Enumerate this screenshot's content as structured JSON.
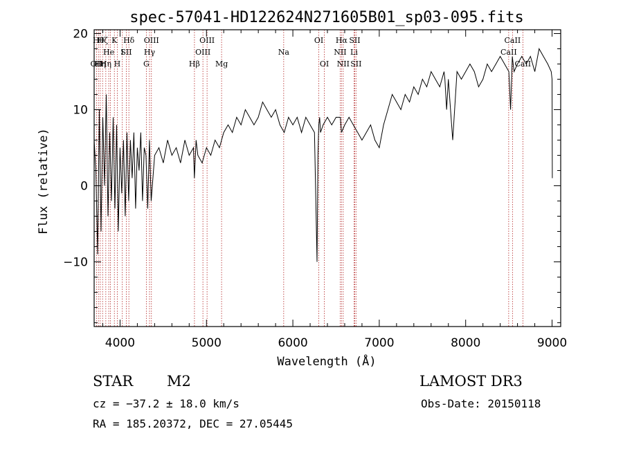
{
  "chart_data": {
    "type": "line",
    "title": "spec-57041-HD122624N271605B01_sp03-095.fits",
    "xlabel": "Wavelength (Å)",
    "ylabel": "Flux (relative)",
    "xlim": [
      3700,
      9100
    ],
    "ylim": [
      -18.5,
      20.5
    ],
    "x_ticks": [
      4000,
      5000,
      6000,
      7000,
      8000,
      9000
    ],
    "x_tick_labels": [
      "4000",
      "5000",
      "6000",
      "7000",
      "8000",
      "9000"
    ],
    "y_ticks": [
      -10,
      0,
      10,
      20
    ],
    "y_tick_labels": [
      "−10",
      "0",
      "10",
      "20"
    ],
    "x_minor_step": 200,
    "y_minor_step": 2,
    "series": [
      {
        "name": "flux",
        "x": [
          3700,
          3720,
          3740,
          3760,
          3780,
          3800,
          3820,
          3840,
          3860,
          3880,
          3900,
          3920,
          3940,
          3960,
          3980,
          4000,
          4020,
          4040,
          4060,
          4080,
          4100,
          4120,
          4140,
          4160,
          4180,
          4200,
          4220,
          4240,
          4260,
          4280,
          4300,
          4320,
          4340,
          4360,
          4400,
          4450,
          4500,
          4550,
          4600,
          4650,
          4700,
          4750,
          4800,
          4850,
          4860,
          4880,
          4900,
          4950,
          5000,
          5050,
          5100,
          5150,
          5200,
          5250,
          5300,
          5350,
          5400,
          5450,
          5500,
          5550,
          5600,
          5650,
          5700,
          5750,
          5800,
          5850,
          5900,
          5950,
          6000,
          6050,
          6100,
          6150,
          6200,
          6250,
          6280,
          6290,
          6300,
          6310,
          6320,
          6350,
          6400,
          6450,
          6500,
          6550,
          6563,
          6600,
          6650,
          6700,
          6750,
          6800,
          6850,
          6900,
          6950,
          7000,
          7050,
          7100,
          7150,
          7200,
          7250,
          7300,
          7350,
          7400,
          7450,
          7500,
          7550,
          7600,
          7650,
          7700,
          7750,
          7760,
          7780,
          7800,
          7850,
          7900,
          7950,
          8000,
          8050,
          8100,
          8150,
          8200,
          8250,
          8300,
          8350,
          8400,
          8450,
          8500,
          8520,
          8540,
          8560,
          8600,
          8650,
          8700,
          8750,
          8800,
          8850,
          8900,
          8950,
          8990,
          9000,
          9003
        ],
        "y": [
          6,
          2,
          -9,
          10,
          -6,
          9,
          0,
          12,
          -4,
          7,
          -2,
          9,
          -3,
          8,
          -6,
          5,
          -1,
          6,
          -4,
          7,
          -2,
          6,
          1,
          7,
          -3,
          5,
          2,
          7,
          -2,
          5,
          4,
          -3,
          6,
          -2,
          4,
          5,
          3,
          6,
          4,
          5,
          3,
          6,
          4,
          5,
          1,
          6,
          4,
          3,
          5,
          4,
          6,
          5,
          7,
          8,
          7,
          9,
          8,
          10,
          9,
          8,
          9,
          11,
          10,
          9,
          10,
          8,
          7,
          9,
          8,
          9,
          7,
          9,
          8,
          7,
          -10,
          4,
          8,
          9,
          7,
          8,
          9,
          8,
          9,
          9,
          7,
          8,
          9,
          8,
          7,
          6,
          7,
          8,
          6,
          5,
          8,
          10,
          12,
          11,
          10,
          12,
          11,
          13,
          12,
          14,
          13,
          15,
          14,
          13,
          15,
          14,
          10,
          14,
          6,
          15,
          14,
          15,
          16,
          15,
          13,
          14,
          16,
          15,
          16,
          17,
          16,
          15,
          10,
          17,
          15,
          16,
          17,
          16,
          17,
          15,
          18,
          17,
          16,
          15,
          14,
          1
        ]
      }
    ],
    "lines": [
      {
        "x": 3727,
        "label": "OII",
        "row": 2
      },
      {
        "x": 3750,
        "label": "Hθ",
        "row": 0
      },
      {
        "x": 3771,
        "label": "Hη",
        "row": 2
      },
      {
        "x": 3798,
        "label": "Hζ",
        "row": 0
      },
      {
        "x": 3835,
        "label": "Hη",
        "row": 2
      },
      {
        "x": 3869,
        "label": "He",
        "row": 1
      },
      {
        "x": 3889,
        "label": "",
        "row": 1
      },
      {
        "x": 3934,
        "label": "K",
        "row": 0
      },
      {
        "x": 3968,
        "label": "H",
        "row": 2
      },
      {
        "x": 4026,
        "label": "I",
        "row": 1
      },
      {
        "x": 4072,
        "label": "SII",
        "row": 1
      },
      {
        "x": 4102,
        "label": "Hδ",
        "row": 0
      },
      {
        "x": 4304,
        "label": "G",
        "row": 2
      },
      {
        "x": 4341,
        "label": "Hγ",
        "row": 1
      },
      {
        "x": 4363,
        "label": "OIII",
        "row": 0
      },
      {
        "x": 4861,
        "label": "Hβ",
        "row": 2
      },
      {
        "x": 4959,
        "label": "OIII",
        "row": 1
      },
      {
        "x": 5007,
        "label": "OIII",
        "row": 0
      },
      {
        "x": 5175,
        "label": "Mg",
        "row": 2
      },
      {
        "x": 5894,
        "label": "Na",
        "row": 1
      },
      {
        "x": 6300,
        "label": "OI",
        "row": 0
      },
      {
        "x": 6364,
        "label": "OI",
        "row": 2
      },
      {
        "x": 6548,
        "label": "NII",
        "row": 1
      },
      {
        "x": 6563,
        "label": "Hα",
        "row": 0
      },
      {
        "x": 6583,
        "label": "NII",
        "row": 2
      },
      {
        "x": 6708,
        "label": "Li",
        "row": 1
      },
      {
        "x": 6716,
        "label": "SII",
        "row": 0
      },
      {
        "x": 6731,
        "label": "SII",
        "row": 2
      },
      {
        "x": 8498,
        "label": "CaII",
        "row": 1
      },
      {
        "x": 8542,
        "label": "CaII",
        "row": 0
      },
      {
        "x": 8662,
        "label": "CaII",
        "row": 2
      }
    ],
    "line_color": "#b22222",
    "data_color": "#000000"
  },
  "info": {
    "object_class": "STAR",
    "subclass": "M2",
    "survey": "LAMOST DR3",
    "cz": "cz = −37.2 ± 18.0 km/s",
    "obs_date": "Obs-Date: 20150118",
    "coords": "RA = 185.20372, DEC =  27.05445"
  }
}
